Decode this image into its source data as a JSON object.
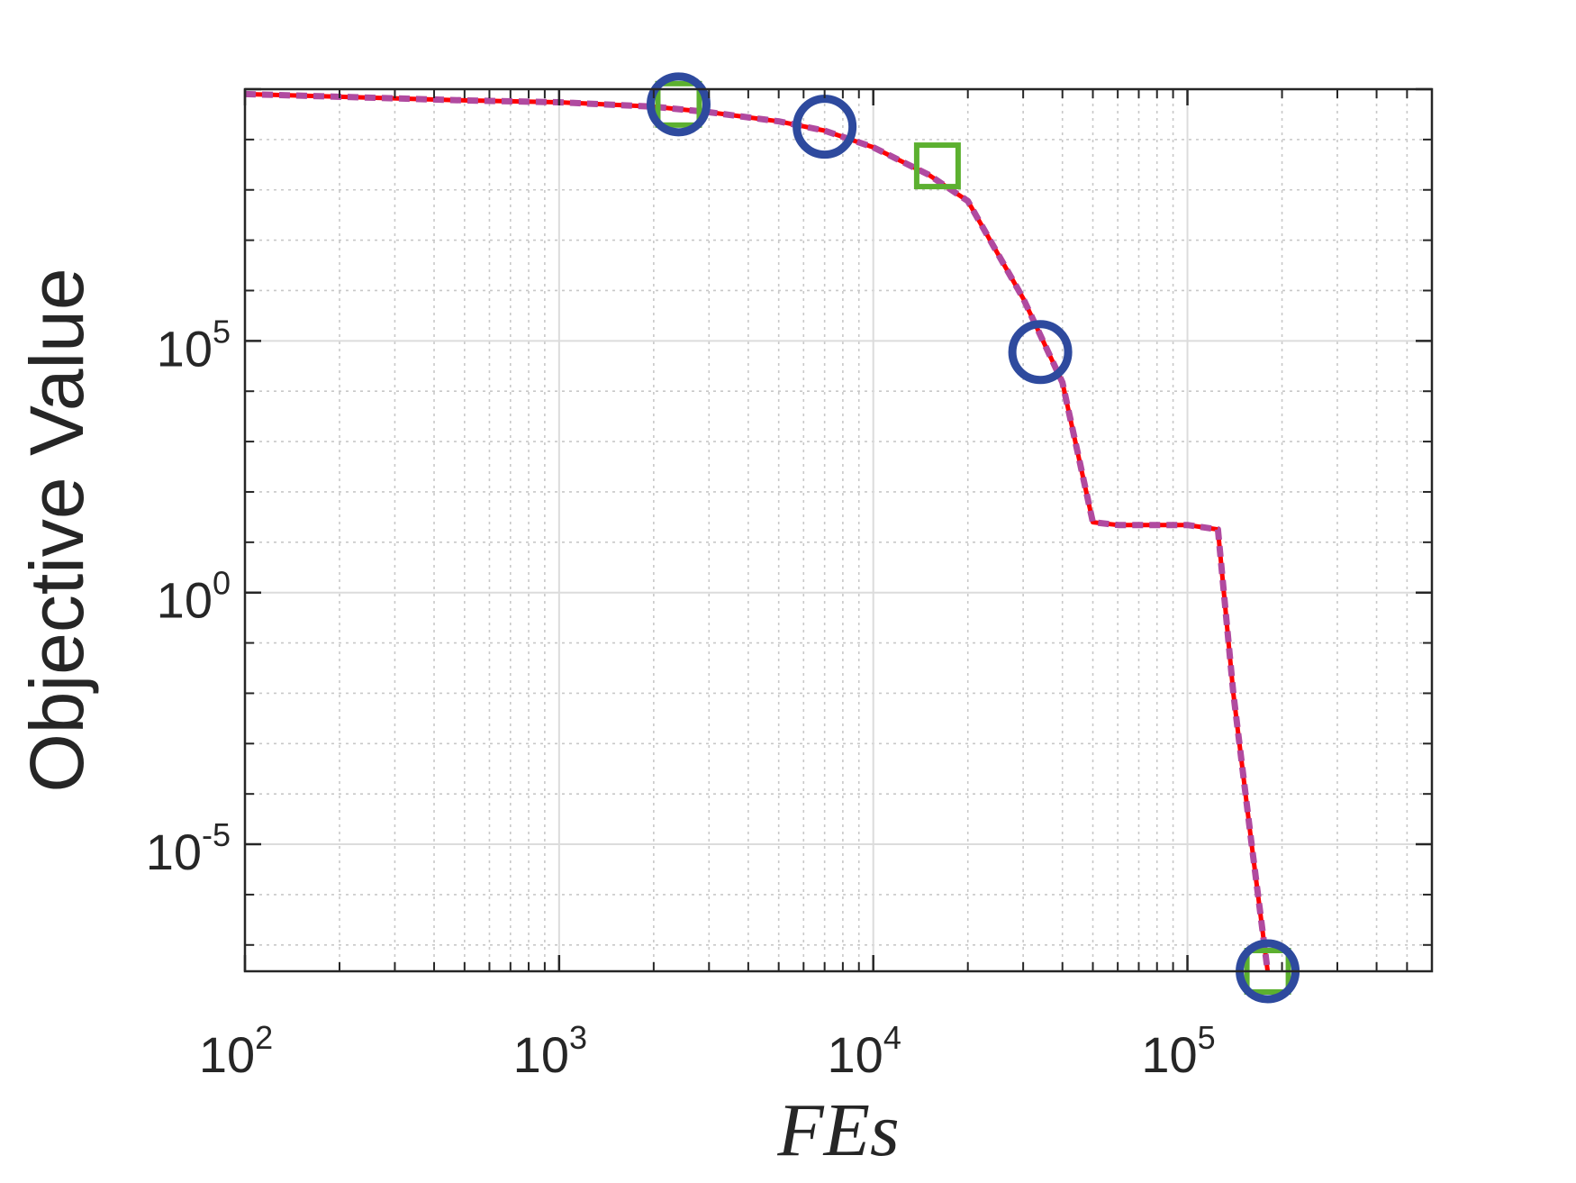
{
  "chart_data": {
    "type": "line",
    "title": "",
    "xlabel": "FEs",
    "ylabel": "Objective Value",
    "xscale": "log",
    "yscale": "log",
    "xlim": [
      100,
      600000
    ],
    "ylim": [
      3e-08,
      10000000000.0
    ],
    "grid": true,
    "minor_grid": true,
    "legend": "none",
    "x_ticks": [
      {
        "value": 100,
        "base": "10",
        "exp": "2"
      },
      {
        "value": 1000,
        "base": "10",
        "exp": "3"
      },
      {
        "value": 10000,
        "base": "10",
        "exp": "4"
      },
      {
        "value": 100000,
        "base": "10",
        "exp": "5"
      }
    ],
    "y_ticks": [
      {
        "value": 1e-05,
        "base": "10",
        "exp": "-5"
      },
      {
        "value": 1,
        "base": "10",
        "exp": "0"
      },
      {
        "value": 100000,
        "base": "10",
        "exp": "5"
      }
    ],
    "series": [
      {
        "color": "#ff0000",
        "style": "solid",
        "x": [
          100,
          500,
          1000,
          2000,
          3000,
          5000,
          7000,
          10000,
          15000,
          20000,
          30000,
          40000,
          50000,
          60000,
          100000,
          125000,
          140000,
          160000,
          180000
        ],
        "y": [
          8000000000.0,
          6000000000.0,
          5500000000.0,
          4500000000.0,
          3500000000.0,
          2300000000.0,
          1500000000.0,
          700000000.0,
          200000000.0,
          60000000.0,
          700000.0,
          15000.0,
          25,
          22,
          22,
          18,
          0.01,
          1e-05,
          3e-08
        ]
      },
      {
        "color": "#b04aa0",
        "style": "dotted",
        "x": [
          100,
          500,
          1000,
          2000,
          3000,
          5000,
          7000,
          10000,
          15000,
          20000,
          30000,
          40000,
          50000,
          60000,
          100000,
          125000,
          140000,
          160000,
          180000
        ],
        "y": [
          8000000000.0,
          6000000000.0,
          5500000000.0,
          4500000000.0,
          3500000000.0,
          2300000000.0,
          1500000000.0,
          700000000.0,
          200000000.0,
          60000000.0,
          700000.0,
          15000.0,
          25,
          22,
          22,
          18,
          0.01,
          1e-05,
          3e-08
        ]
      }
    ],
    "markers": [
      {
        "shape": "circle",
        "color": "#2e4a9e",
        "x": 2400,
        "y": 5000000000.0
      },
      {
        "shape": "circle",
        "color": "#2e4a9e",
        "x": 7000,
        "y": 1800000000.0
      },
      {
        "shape": "circle",
        "color": "#2e4a9e",
        "x": 34000,
        "y": 60000.0
      },
      {
        "shape": "circle",
        "color": "#2e4a9e",
        "x": 180000,
        "y": 3e-08
      },
      {
        "shape": "square",
        "color": "#5cb030",
        "x": 2400,
        "y": 5000000000.0
      },
      {
        "shape": "square",
        "color": "#5cb030",
        "x": 16000,
        "y": 300000000.0
      },
      {
        "shape": "square",
        "color": "#5cb030",
        "x": 180000,
        "y": 3e-08
      }
    ]
  }
}
